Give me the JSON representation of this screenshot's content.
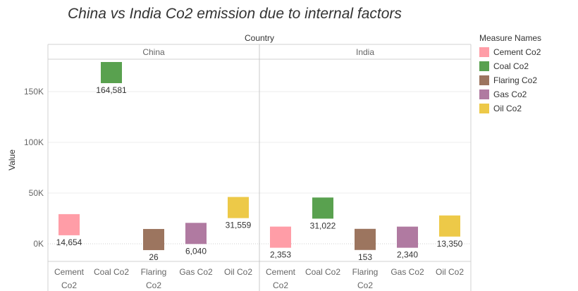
{
  "chart_data": {
    "type": "bar",
    "title": "China vs India Co2 emission due to internal factors",
    "column_header": "Country",
    "ylabel": "Value",
    "ylim": [
      -20000,
      185000
    ],
    "yticks": [
      0,
      50000,
      100000,
      150000
    ],
    "ytick_labels": [
      "0K",
      "50K",
      "100K",
      "150K"
    ],
    "grid": true,
    "panels": [
      "China",
      "India"
    ],
    "categories": [
      "Cement Co2",
      "Coal Co2",
      "Flaring Co2",
      "Gas Co2",
      "Oil Co2"
    ],
    "category_labels": [
      [
        "Cement",
        "Co2"
      ],
      [
        "Coal Co2"
      ],
      [
        "Flaring",
        "Co2"
      ],
      [
        "Gas Co2"
      ],
      [
        "Oil Co2"
      ]
    ],
    "values": {
      "China": [
        14654,
        164581,
        26,
        6040,
        31559
      ],
      "India": [
        2353,
        31022,
        153,
        2340,
        13350
      ]
    },
    "data_labels": {
      "China": [
        "14,654",
        "164,581",
        "26",
        "6,040",
        "31,559"
      ],
      "India": [
        "2,353",
        "31,022",
        "153",
        "2,340",
        "13,350"
      ]
    },
    "colors": [
      "#ff9da7",
      "#59a14f",
      "#9c755f",
      "#b07aa1",
      "#edc948"
    ],
    "legend": {
      "title": "Measure Names",
      "placement": "right",
      "items": [
        "Cement Co2",
        "Coal Co2",
        "Flaring Co2",
        "Gas Co2",
        "Oil Co2"
      ]
    }
  }
}
